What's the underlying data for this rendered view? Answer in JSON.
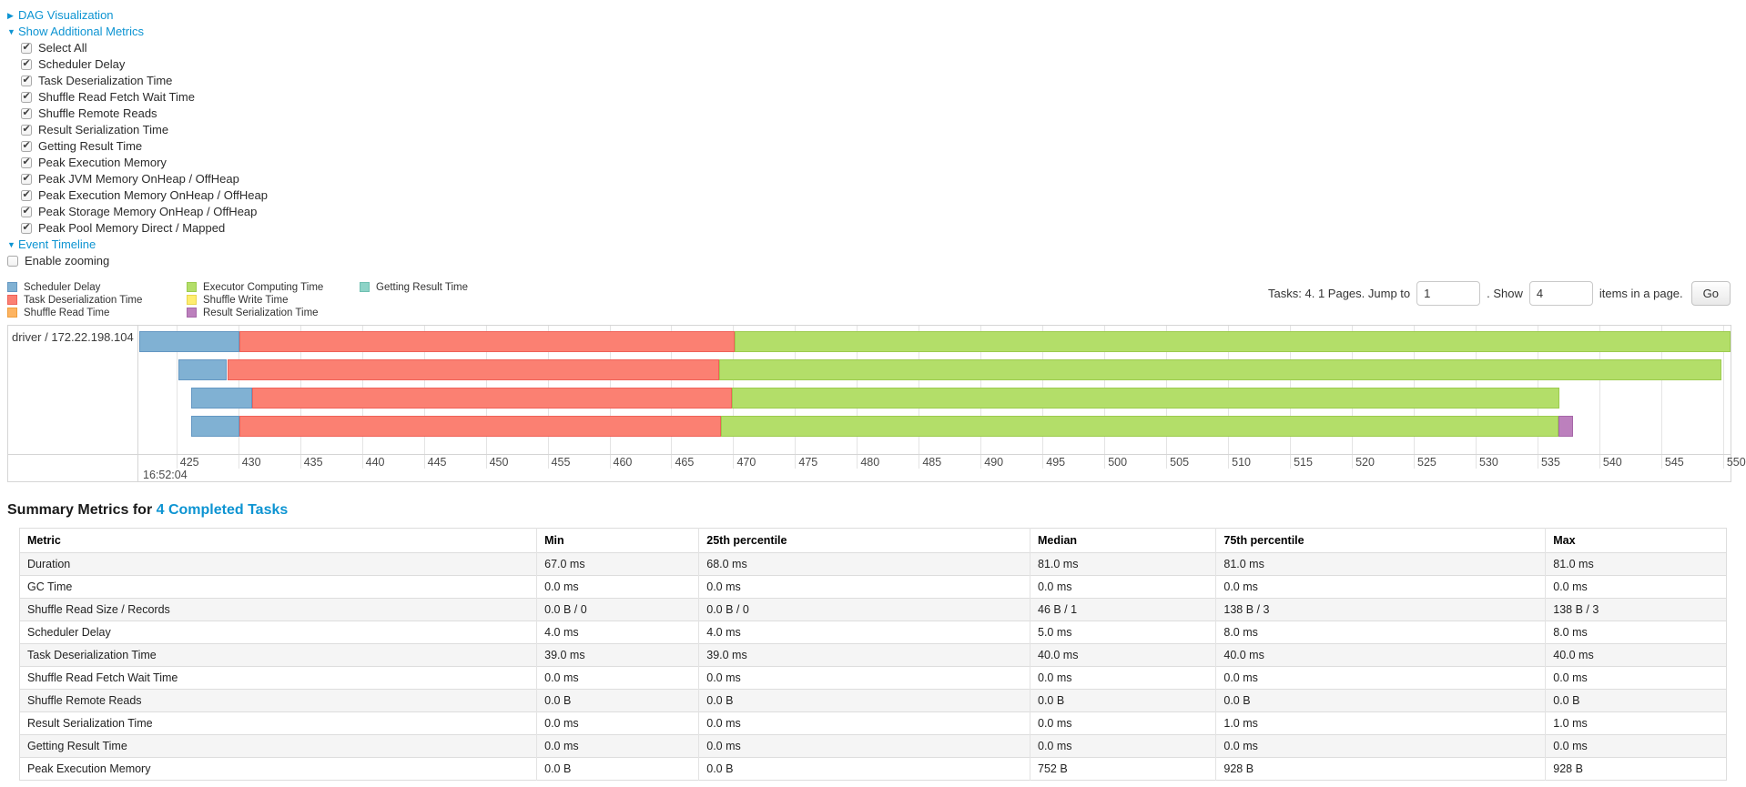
{
  "colors": {
    "link": "#0d94d2"
  },
  "controls": {
    "dag_label": "DAG Visualization",
    "metrics_label": "Show Additional Metrics",
    "event_timeline_label": "Event Timeline",
    "metric_checkboxes": [
      {
        "label": "Select All",
        "checked": true
      },
      {
        "label": "Scheduler Delay",
        "checked": true
      },
      {
        "label": "Task Deserialization Time",
        "checked": true
      },
      {
        "label": "Shuffle Read Fetch Wait Time",
        "checked": true
      },
      {
        "label": "Shuffle Remote Reads",
        "checked": true
      },
      {
        "label": "Result Serialization Time",
        "checked": true
      },
      {
        "label": "Getting Result Time",
        "checked": true
      },
      {
        "label": "Peak Execution Memory",
        "checked": true
      },
      {
        "label": "Peak JVM Memory OnHeap / OffHeap",
        "checked": true
      },
      {
        "label": "Peak Execution Memory OnHeap / OffHeap",
        "checked": true
      },
      {
        "label": "Peak Storage Memory OnHeap / OffHeap",
        "checked": true
      },
      {
        "label": "Peak Pool Memory Direct / Mapped",
        "checked": true
      }
    ],
    "enable_zooming": {
      "label": "Enable zooming",
      "checked": false
    }
  },
  "pager": {
    "prefix": "Tasks: 4. 1 Pages. Jump to",
    "jump_value": "1",
    "between": ". Show",
    "show_value": "4",
    "suffix": "items in a page.",
    "go_label": "Go"
  },
  "chart_data": {
    "type": "timeline",
    "group_label": "driver / 172.22.198.104",
    "axis": {
      "min": 422.0,
      "max": 550.6,
      "tick_start": 425,
      "tick_end": 550,
      "tick_step": 5,
      "major_label": "16:52:04",
      "unit": "ms"
    },
    "palette": {
      "scheduler_delay": {
        "label": "Scheduler Delay",
        "fill": "#80B1D3",
        "border": "#6497c2"
      },
      "task_deserialization": {
        "label": "Task Deserialization Time",
        "fill": "#FB8072",
        "border": "#ef6158"
      },
      "shuffle_read": {
        "label": "Shuffle Read Time",
        "fill": "#FDB462",
        "border": "#f09e3c"
      },
      "executor_computing": {
        "label": "Executor Computing Time",
        "fill": "#B3DE69",
        "border": "#9ccb4e"
      },
      "shuffle_write": {
        "label": "Shuffle Write Time",
        "fill": "#FFED6F",
        "border": "#e9d64f"
      },
      "result_serialization": {
        "label": "Result Serialization Time",
        "fill": "#BC80BD",
        "border": "#a667a8"
      },
      "getting_result": {
        "label": "Getting Result Time",
        "fill": "#8DD3C7",
        "border": "#6fbfb1"
      }
    },
    "legend_columns": [
      [
        "scheduler_delay",
        "task_deserialization",
        "shuffle_read"
      ],
      [
        "executor_computing",
        "shuffle_write",
        "result_serialization"
      ],
      [
        "getting_result"
      ]
    ],
    "tasks": [
      {
        "segments": [
          {
            "key": "scheduler_delay",
            "start": 422.0,
            "end": 430.1
          },
          {
            "key": "task_deserialization",
            "start": 430.1,
            "end": 470.1
          },
          {
            "key": "executor_computing",
            "start": 470.1,
            "end": 550.6
          }
        ]
      },
      {
        "segments": [
          {
            "key": "scheduler_delay",
            "start": 425.2,
            "end": 429.1
          },
          {
            "key": "task_deserialization",
            "start": 429.1,
            "end": 468.9
          },
          {
            "key": "executor_computing",
            "start": 468.9,
            "end": 549.9
          }
        ]
      },
      {
        "segments": [
          {
            "key": "scheduler_delay",
            "start": 426.2,
            "end": 431.1
          },
          {
            "key": "task_deserialization",
            "start": 431.1,
            "end": 469.9
          },
          {
            "key": "executor_computing",
            "start": 469.9,
            "end": 536.8
          }
        ]
      },
      {
        "segments": [
          {
            "key": "scheduler_delay",
            "start": 426.2,
            "end": 430.1
          },
          {
            "key": "task_deserialization",
            "start": 430.1,
            "end": 469.0
          },
          {
            "key": "executor_computing",
            "start": 469.0,
            "end": 536.7
          },
          {
            "key": "result_serialization",
            "start": 536.7,
            "end": 537.9
          }
        ]
      }
    ],
    "row_layout": {
      "tops": [
        6,
        37,
        68,
        99
      ],
      "height": 23
    }
  },
  "summary": {
    "title_prefix": "Summary Metrics for",
    "title_link": "4 Completed Tasks",
    "table": {
      "headers": [
        "Metric",
        "Min",
        "25th percentile",
        "Median",
        "75th percentile",
        "Max"
      ],
      "col_widths_pct": [
        30.3,
        9.5,
        19.4,
        10.9,
        19.3,
        10.6
      ],
      "rows": [
        [
          "Duration",
          "67.0 ms",
          "68.0 ms",
          "81.0 ms",
          "81.0 ms",
          "81.0 ms"
        ],
        [
          "GC Time",
          "0.0 ms",
          "0.0 ms",
          "0.0 ms",
          "0.0 ms",
          "0.0 ms"
        ],
        [
          "Shuffle Read Size / Records",
          "0.0 B / 0",
          "0.0 B / 0",
          "46 B / 1",
          "138 B / 3",
          "138 B / 3"
        ],
        [
          "Scheduler Delay",
          "4.0 ms",
          "4.0 ms",
          "5.0 ms",
          "8.0 ms",
          "8.0 ms"
        ],
        [
          "Task Deserialization Time",
          "39.0 ms",
          "39.0 ms",
          "40.0 ms",
          "40.0 ms",
          "40.0 ms"
        ],
        [
          "Shuffle Read Fetch Wait Time",
          "0.0 ms",
          "0.0 ms",
          "0.0 ms",
          "0.0 ms",
          "0.0 ms"
        ],
        [
          "Shuffle Remote Reads",
          "0.0 B",
          "0.0 B",
          "0.0 B",
          "0.0 B",
          "0.0 B"
        ],
        [
          "Result Serialization Time",
          "0.0 ms",
          "0.0 ms",
          "0.0 ms",
          "1.0 ms",
          "1.0 ms"
        ],
        [
          "Getting Result Time",
          "0.0 ms",
          "0.0 ms",
          "0.0 ms",
          "0.0 ms",
          "0.0 ms"
        ],
        [
          "Peak Execution Memory",
          "0.0 B",
          "0.0 B",
          "752 B",
          "928 B",
          "928 B"
        ]
      ]
    }
  }
}
